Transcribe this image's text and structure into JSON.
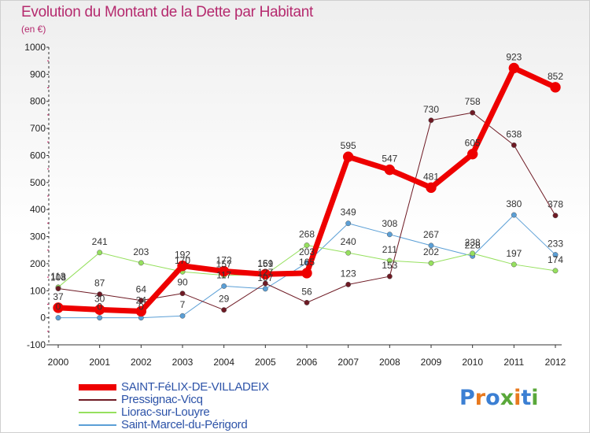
{
  "title": "Evolution du Montant de la Dette par Habitant",
  "subtitle": "(en €)",
  "logo": {
    "text": "Proxiti",
    "colors": [
      "#3b7fd3",
      "#e8791e",
      "#3b7fd3",
      "#5aa83a",
      "#e8791e",
      "#3b7fd3",
      "#5aa83a"
    ]
  },
  "chart_data": {
    "type": "line",
    "x": [
      "2000",
      "2001",
      "2002",
      "2003",
      "2004",
      "2005",
      "2006",
      "2007",
      "2008",
      "2009",
      "2010",
      "2011",
      "2012"
    ],
    "ylim": [
      -100,
      1000
    ],
    "yticks": [
      -100,
      0,
      100,
      200,
      300,
      400,
      500,
      600,
      700,
      800,
      900,
      1000
    ],
    "grid": false,
    "legend_position": "bottom-left",
    "series": [
      {
        "name": "Saint-Marcel-du-Périgord",
        "color": "#5b9fd6",
        "width": 1,
        "values": [
          0,
          0,
          0,
          7,
          117,
          107,
          203,
          349,
          308,
          267,
          228,
          380,
          233
        ]
      },
      {
        "name": "Liorac-sur-Louyre",
        "color": "#96e05e",
        "width": 1,
        "values": [
          113,
          241,
          203,
          170,
          157,
          159,
          268,
          240,
          211,
          202,
          238,
          197,
          174
        ]
      },
      {
        "name": "Pressignac-Vicq",
        "color": "#6e1a24",
        "width": 1,
        "values": [
          108,
          87,
          64,
          90,
          29,
          127,
          56,
          123,
          153,
          730,
          758,
          638,
          378
        ]
      },
      {
        "name": "SAINT-FéLIX-DE-VILLADEIX",
        "color": "#ee0000",
        "width": 7,
        "values": [
          37,
          30,
          24,
          192,
          172,
          161,
          165,
          595,
          547,
          481,
          605,
          923,
          852
        ]
      }
    ]
  }
}
